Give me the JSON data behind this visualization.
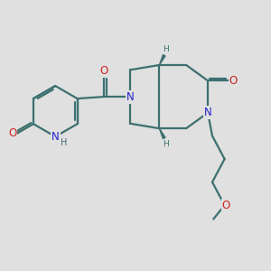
{
  "background_color": "#e0e0e0",
  "bond_color": "#3d7070",
  "bond_width": 1.6,
  "atom_colors": {
    "N": "#2222cc",
    "O": "#cc2222",
    "H": "#3d7070"
  },
  "font_size": 8.5,
  "wedge_color": "#3d7070"
}
